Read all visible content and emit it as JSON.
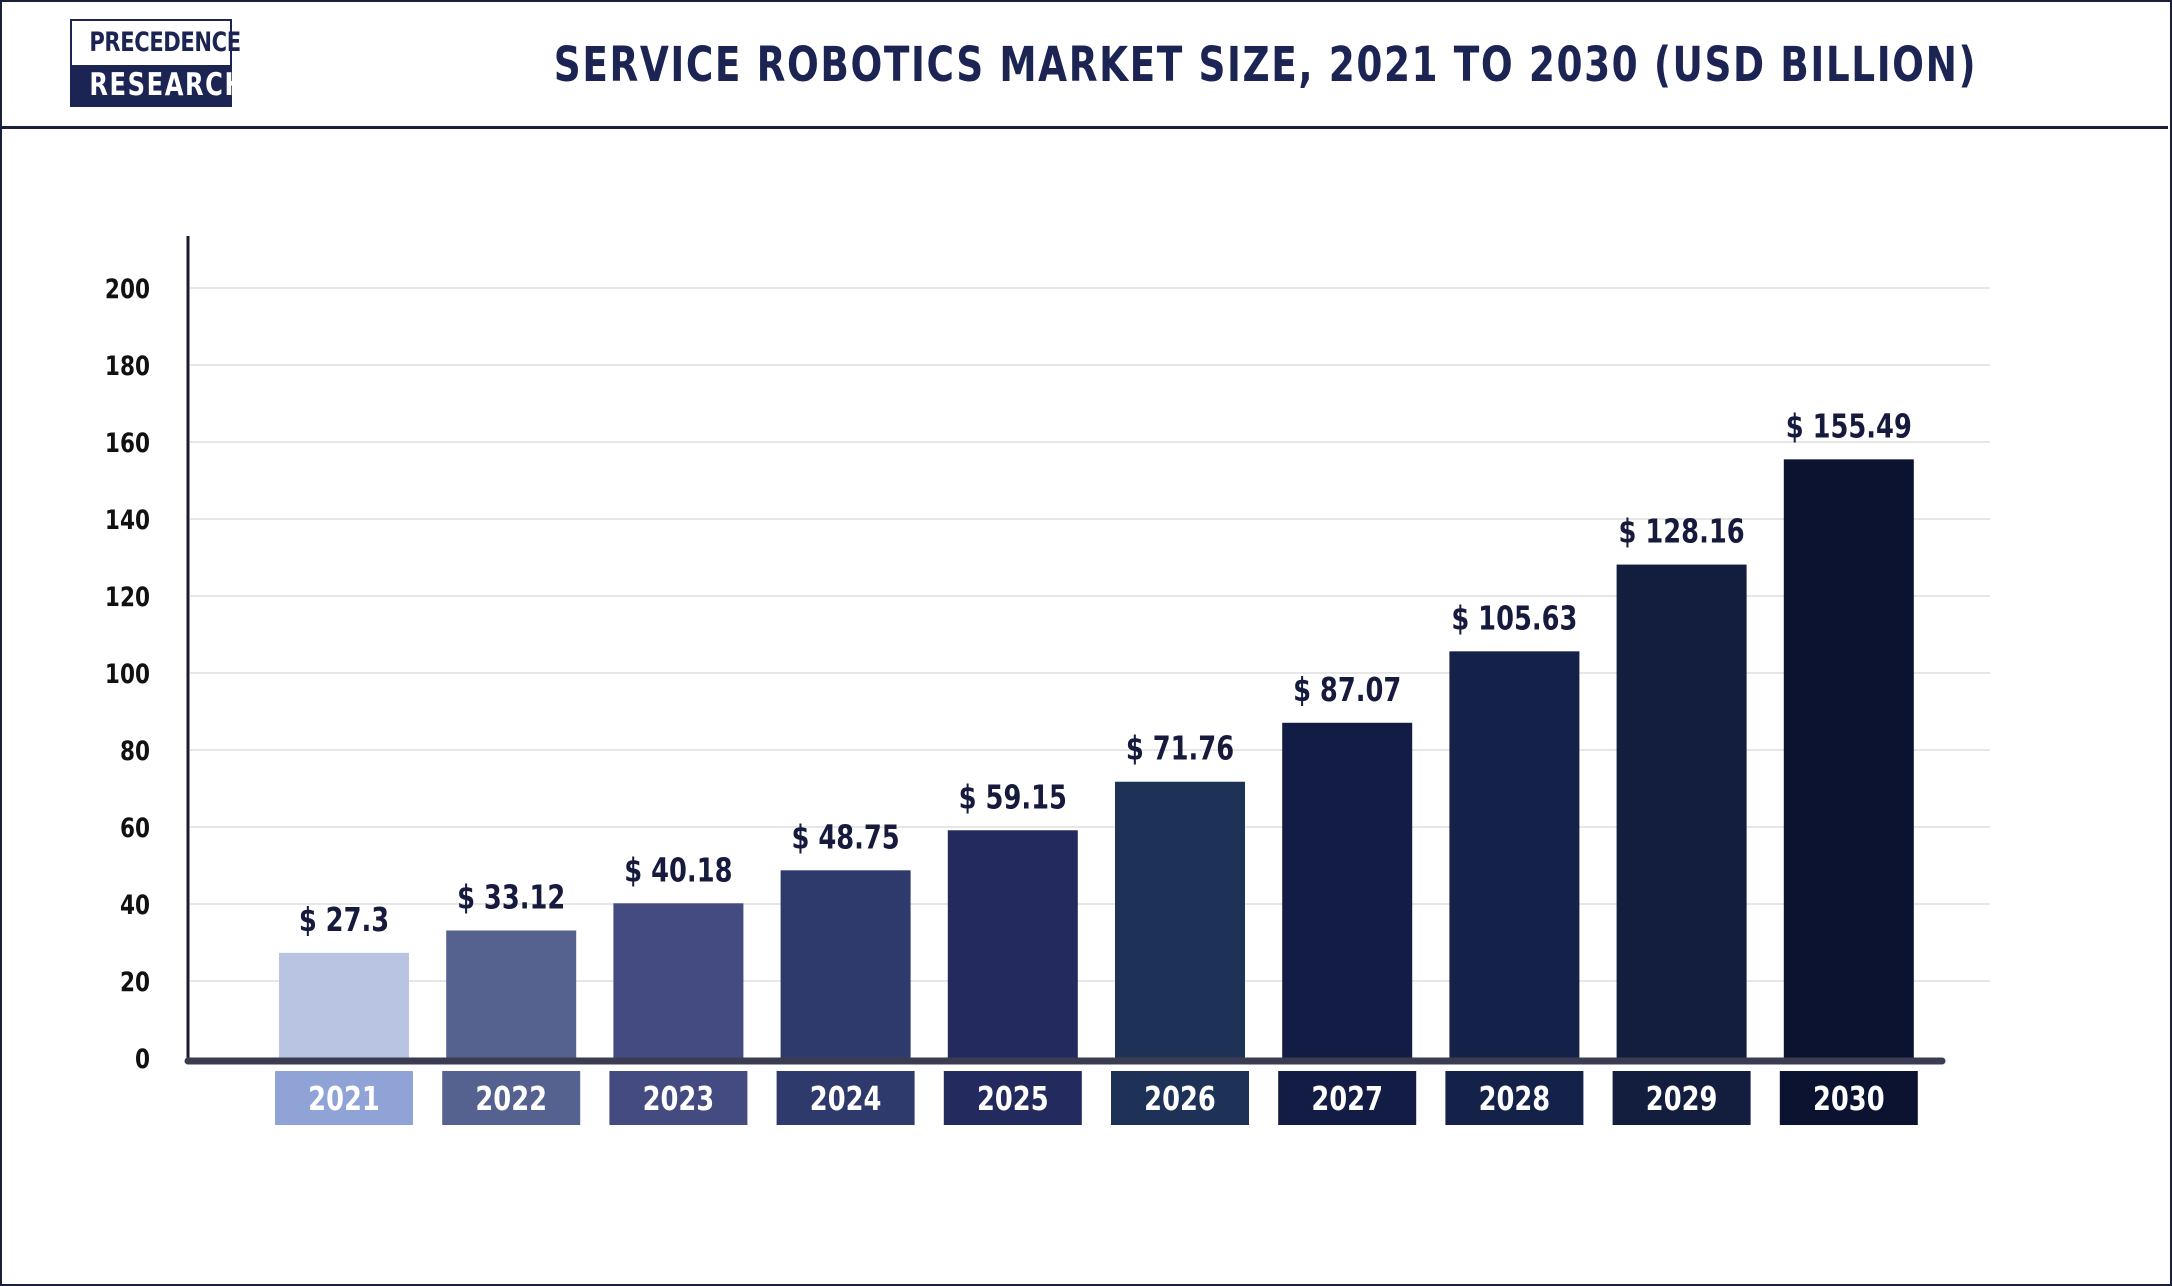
{
  "header": {
    "logo": {
      "line1": "PRECEDENCE",
      "line2": "RESEARCH"
    }
  },
  "chart_data": {
    "type": "bar",
    "title": "SERVICE ROBOTICS MARKET SIZE, 2021 TO 2030 (USD BILLION)",
    "xlabel": "",
    "ylabel": "",
    "categories": [
      "2021",
      "2022",
      "2023",
      "2024",
      "2025",
      "2026",
      "2027",
      "2028",
      "2029",
      "2030"
    ],
    "values": [
      27.3,
      33.12,
      40.18,
      48.75,
      59.15,
      71.76,
      87.07,
      105.63,
      128.16,
      155.49
    ],
    "value_labels": [
      "$ 27.3",
      "$ 33.12",
      "$ 40.18",
      "$ 48.75",
      "$ 59.15",
      "$ 71.76",
      "$ 87.07",
      "$ 105.63",
      "$ 128.16",
      "$ 155.49"
    ],
    "ylim": [
      0,
      200
    ],
    "yticks": [
      0,
      20,
      40,
      60,
      80,
      100,
      120,
      140,
      160,
      180,
      200
    ],
    "grid": true,
    "legend": "none",
    "bar_colors": [
      "#b9c3e2",
      "#55628f",
      "#434b81",
      "#2e3a6c",
      "#222a5e",
      "#1e3258",
      "#121c45",
      "#14224a",
      "#131d3e",
      "#0b1330"
    ],
    "category_box_colors": [
      "#8fa3d6",
      "#55628f",
      "#434b81",
      "#2e3a6c",
      "#222a5e",
      "#1e3258",
      "#121c45",
      "#14224a",
      "#131d3e",
      "#0b1330"
    ],
    "axis_color": "#1a1a2e",
    "baseline_color": "#3a3d52",
    "gridline_color": "#e6e6e6"
  }
}
